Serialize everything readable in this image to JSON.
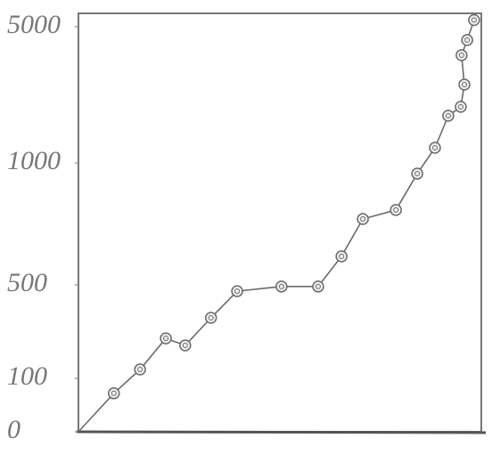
{
  "chart_data": {
    "type": "line",
    "x": [
      0,
      8.8,
      15.3,
      21.7,
      26.5,
      32.9,
      39.4,
      50.4,
      59.5,
      65.3,
      70.6,
      78.8,
      84.1,
      88.5,
      91.8,
      94.9,
      95.8,
      95.1,
      96.5,
      98.2
    ],
    "values": [
      0,
      72,
      138,
      271,
      241,
      359,
      473,
      493,
      493,
      617,
      770,
      807,
      956,
      1444,
      2386,
      2647,
      3301,
      4163,
      4608,
      5200
    ],
    "xlim": [
      0,
      100
    ],
    "ylim": [
      0,
      5400
    ],
    "yticks": [
      0,
      100,
      500,
      1000,
      5000
    ],
    "color": "#6a6a6a"
  }
}
